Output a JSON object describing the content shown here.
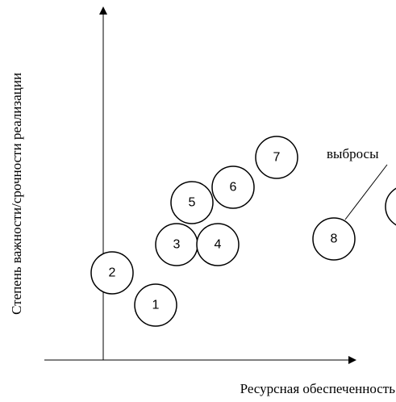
{
  "x_axis_label": "Ресурсная обеспеченность",
  "y_axis_label": "Степень важности/срочности реализации",
  "annotation": "выбросы",
  "nodes": [
    {
      "label": "1"
    },
    {
      "label": "2"
    },
    {
      "label": "3"
    },
    {
      "label": "4"
    },
    {
      "label": "5"
    },
    {
      "label": "6"
    },
    {
      "label": "7"
    },
    {
      "label": "8"
    }
  ]
}
